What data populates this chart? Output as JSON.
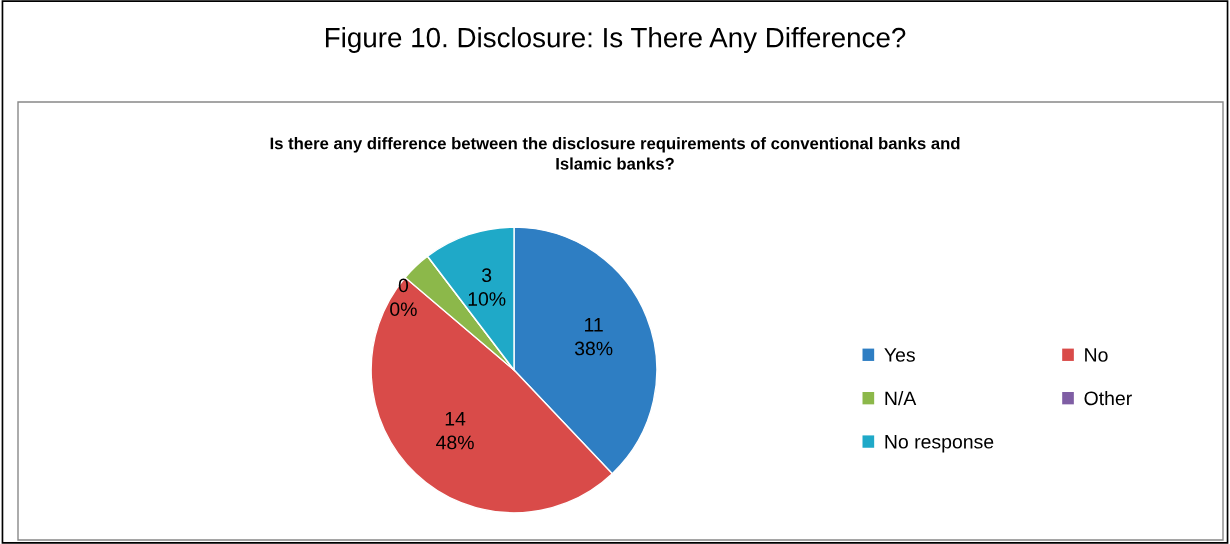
{
  "chart_data": {
    "type": "pie",
    "title": "Figure 10. Disclosure: Is There Any Difference?",
    "subtitle": "Is there any difference between the disclosure requirements of conventional banks and\nIslamic banks?",
    "categories": [
      "Yes",
      "No",
      "N/A",
      "Other",
      "No response"
    ],
    "values": [
      11,
      14,
      1,
      0,
      3
    ],
    "value_labels": [
      "11\n38%",
      "14\n48%",
      null,
      "0\n0%",
      "3\n10%"
    ],
    "colors": [
      "#2e7ec3",
      "#d94b49",
      "#8cb84a",
      "#7f5ea4",
      "#1fa9c8"
    ],
    "legend": "right"
  }
}
